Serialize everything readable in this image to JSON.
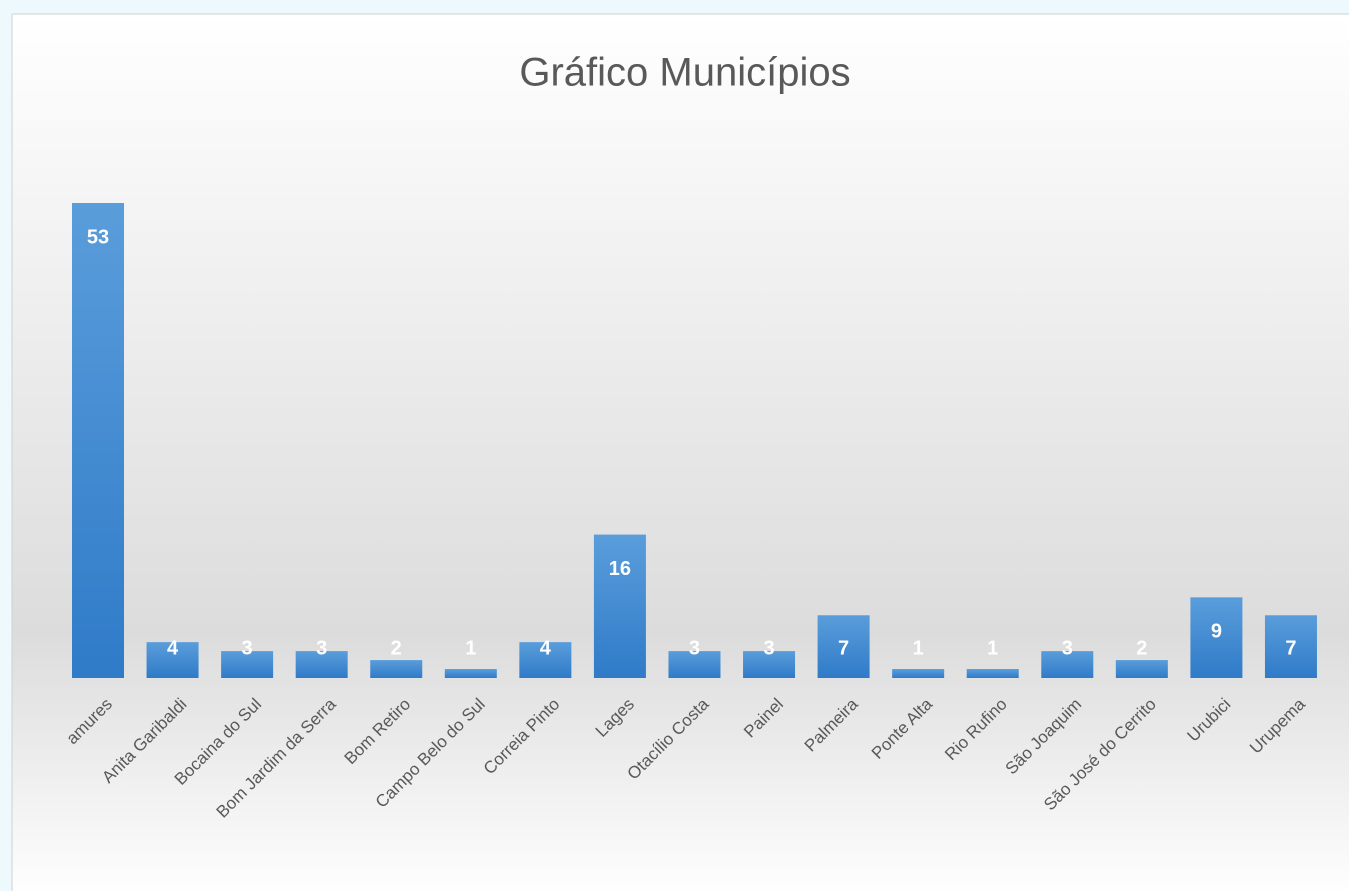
{
  "chart_data": {
    "type": "bar",
    "title": "Gráfico Municípios",
    "categories": [
      "amures",
      "Anita Garibaldi",
      "Bocaina do Sul",
      "Bom Jardim da Serra",
      "Bom Retiro",
      "Campo Belo do Sul",
      "Correia Pinto",
      "Lages",
      "Otacílio Costa",
      "Painel",
      "Palmeira",
      "Ponte Alta",
      "Rio Rufino",
      "São Joaquim",
      "São José do Cerrito",
      "Urubici",
      "Urupema"
    ],
    "values": [
      53,
      4,
      3,
      3,
      2,
      1,
      4,
      16,
      3,
      3,
      7,
      1,
      1,
      3,
      2,
      9,
      7
    ],
    "color": "#3f87cf"
  }
}
